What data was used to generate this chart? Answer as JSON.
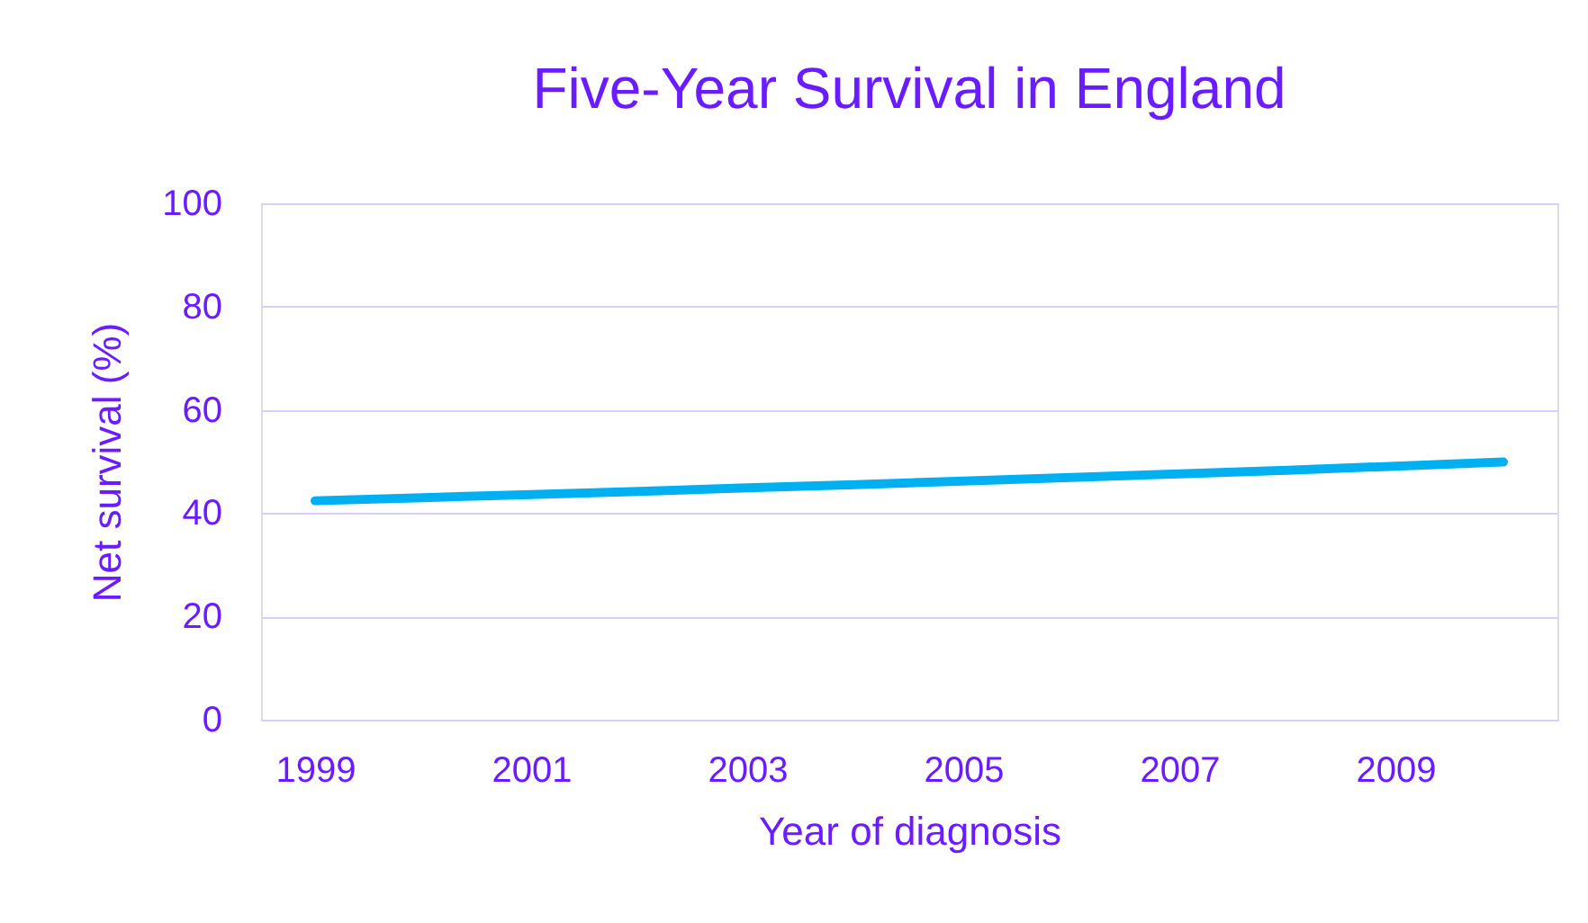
{
  "chart_data": {
    "type": "line",
    "title": "Five-Year Survival in England",
    "xlabel": "Year of diagnosis",
    "ylabel": "Net survival (%)",
    "categories": [
      "1999",
      null,
      "2001",
      null,
      "2003",
      null,
      "2005",
      null,
      "2007",
      null,
      "2009",
      null
    ],
    "series": [
      {
        "color": "#00b0f0",
        "values": [
          42.4,
          43.0,
          43.6,
          44.2,
          44.9,
          45.5,
          46.2,
          46.9,
          47.6,
          48.3,
          49.1,
          49.9
        ]
      }
    ],
    "ylim": [
      0,
      100
    ],
    "yticks": [
      0,
      20,
      40,
      60,
      80,
      100
    ],
    "grid": "y",
    "legend": false,
    "marker": "none",
    "line_style": "solid"
  }
}
